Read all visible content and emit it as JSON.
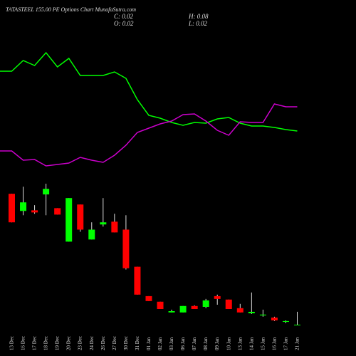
{
  "chart_data": {
    "type": "candlestick",
    "title": "TATASTEEL 155.00 PE Options Chart MunafaSutra.com",
    "summary": {
      "close": "C: 0.02",
      "high": "H: 0.08",
      "open": "O: 0.02",
      "low": "L: 0.02"
    },
    "categories": [
      "13 Dec",
      "16 Dec",
      "17 Dec",
      "18 Dec",
      "19 Dec",
      "20 Dec",
      "23 Dec",
      "24 Dec",
      "26 Dec",
      "27 Dec",
      "30 Dec",
      "31 Dec",
      "01 Jan",
      "02 Jan",
      "03 Jan",
      "06 Jan",
      "07 Jan",
      "08 Jan",
      "09 Jan",
      "10 Jan",
      "13 Jan",
      "14 Jan",
      "15 Jan",
      "16 Jan",
      "17 Jan",
      "21 Jan"
    ],
    "open": [
      0.63,
      0.55,
      0.553,
      0.627,
      0.563,
      0.407,
      0.58,
      0.417,
      0.487,
      0.5,
      0.463,
      0.29,
      0.153,
      0.127,
      0.077,
      0.077,
      0.107,
      0.103,
      0.153,
      0.137,
      0.097,
      0.073,
      0.063,
      0.053,
      0.033,
      0.02
    ],
    "high": [
      0.63,
      0.663,
      0.577,
      0.677,
      0.563,
      0.61,
      0.58,
      0.497,
      0.61,
      0.537,
      0.53,
      0.29,
      0.153,
      0.127,
      0.09,
      0.107,
      0.11,
      0.14,
      0.16,
      0.137,
      0.117,
      0.17,
      0.09,
      0.057,
      0.04,
      0.08
    ],
    "low": [
      0.497,
      0.53,
      0.537,
      0.53,
      0.533,
      0.407,
      0.453,
      0.417,
      0.477,
      0.45,
      0.277,
      0.16,
      0.13,
      0.093,
      0.077,
      0.077,
      0.093,
      0.097,
      0.113,
      0.093,
      0.077,
      0.07,
      0.057,
      0.037,
      0.027,
      0.02
    ],
    "close": [
      0.497,
      0.59,
      0.543,
      0.653,
      0.533,
      0.61,
      0.463,
      0.463,
      0.497,
      0.45,
      0.283,
      0.16,
      0.13,
      0.093,
      0.083,
      0.107,
      0.093,
      0.133,
      0.14,
      0.093,
      0.077,
      0.08,
      0.067,
      0.04,
      0.037,
      0.02
    ],
    "up_color": "#00ff00",
    "down_color": "#ff0000",
    "series": [
      {
        "color": "#00ff00",
        "values": [
          200,
          215,
          208,
          226,
          206,
          218,
          194,
          194,
          194,
          199,
          190,
          160,
          138,
          134,
          128,
          124,
          128,
          127,
          133,
          135,
          127,
          123,
          123,
          121,
          118,
          116
        ]
      },
      {
        "color": "#cc00cc",
        "values": [
          88,
          75,
          76,
          67,
          69,
          71,
          79,
          75,
          72,
          82,
          96,
          114,
          120,
          126,
          130,
          139,
          140,
          130,
          117,
          110,
          129,
          128,
          128,
          154,
          150,
          150
        ]
      }
    ]
  }
}
